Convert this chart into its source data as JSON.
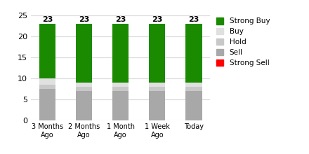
{
  "categories": [
    "3 Months\nAgo",
    "2 Months\nAgo",
    "1 Month\nAgo",
    "1 Week\nAgo",
    "Today"
  ],
  "strong_buy": [
    13,
    14,
    14,
    14,
    14
  ],
  "buy": [
    1.5,
    1,
    1,
    1,
    1
  ],
  "hold": [
    1,
    1,
    1,
    1,
    1
  ],
  "sell": [
    7.5,
    7,
    7,
    7,
    7
  ],
  "strong_sell": [
    0,
    0,
    0,
    0,
    0
  ],
  "totals": [
    23,
    23,
    23,
    23,
    23
  ],
  "colors": {
    "strong_buy": "#1a8a00",
    "buy": "#e0e0e0",
    "hold": "#c8c8c8",
    "sell": "#a8a8a8",
    "strong_sell": "#ff0000"
  },
  "ylim": [
    0,
    25
  ],
  "yticks": [
    0,
    5,
    10,
    15,
    20,
    25
  ],
  "bar_width": 0.45,
  "figure_width": 4.4,
  "figure_height": 2.2,
  "dpi": 100,
  "bg_color": "#ffffff",
  "grid_color": "#d8d8d8",
  "legend_labels": [
    "Strong Buy",
    "Buy",
    "Hold",
    "Sell",
    "Strong Sell"
  ]
}
